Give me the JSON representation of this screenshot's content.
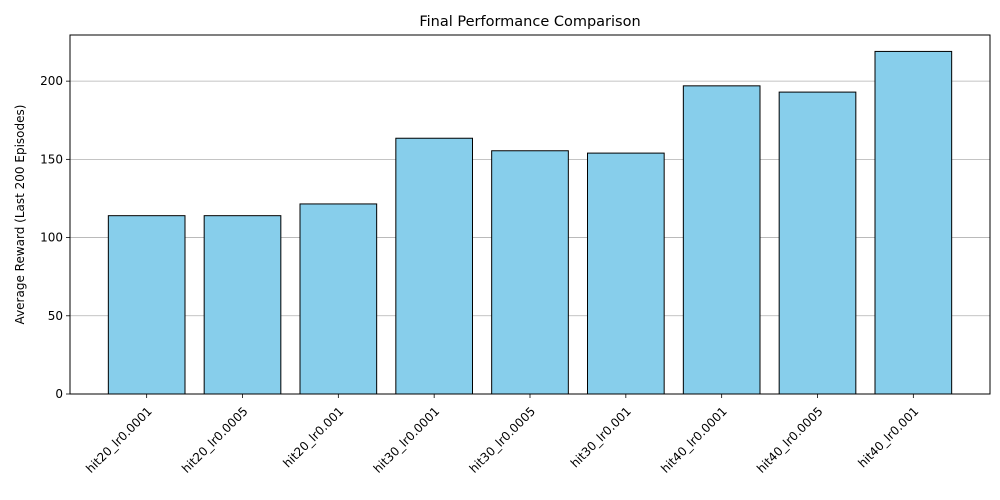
{
  "chart_data": {
    "type": "bar",
    "title": "Final Performance Comparison",
    "xlabel": "",
    "ylabel": "Average Reward (Last 200 Episodes)",
    "categories": [
      "hit20_lr0.0001",
      "hit20_lr0.0005",
      "hit20_lr0.001",
      "hit30_lr0.0001",
      "hit30_lr0.0005",
      "hit30_lr0.001",
      "hit40_lr0.0001",
      "hit40_lr0.0005",
      "hit40_lr0.001"
    ],
    "values": [
      114,
      114,
      121.5,
      163.5,
      155.5,
      154,
      197,
      193,
      219
    ],
    "ylim": [
      0,
      229.5
    ],
    "yticks": [
      0,
      50,
      100,
      150,
      200
    ],
    "ytick_labels": [
      "0",
      "50",
      "100",
      "150",
      "200"
    ],
    "grid": "y",
    "bar_color": "#87CEEB",
    "bar_edge_color": "#000000",
    "grid_color": "#b0b0b0",
    "xtick_rotation": 45
  }
}
